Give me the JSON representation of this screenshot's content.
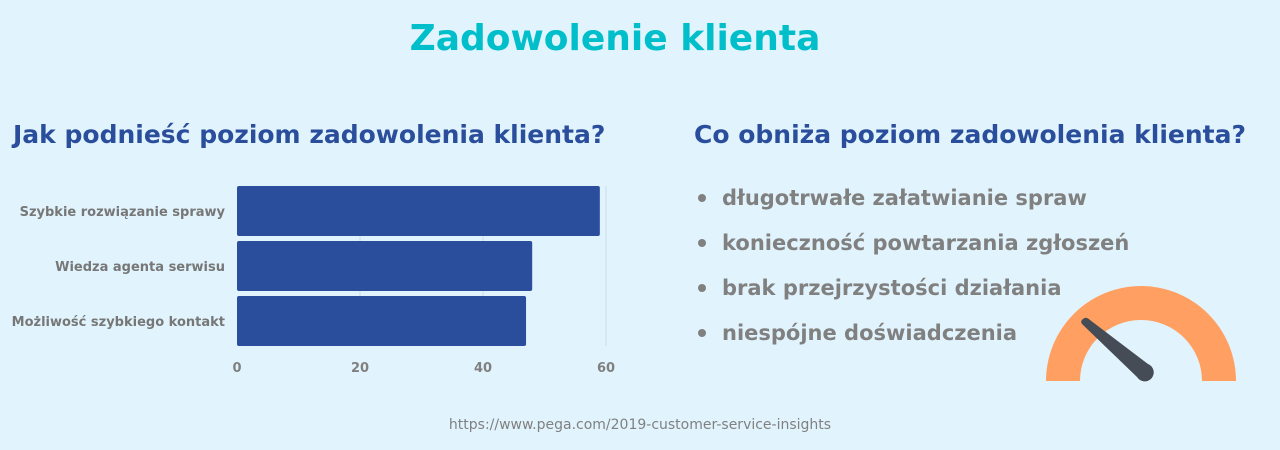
{
  "title": "Zadowolenie klienta",
  "left_heading": "Jak podnieść poziom zadowolenia klienta?",
  "right_heading": "Co obniża poziom zadowolenia klienta?",
  "bullets": [
    "długotrwałe załatwianie spraw",
    "konieczność powtarzania zgłoszeń",
    "brak przejrzystości działania",
    "niespójne doświadczenia"
  ],
  "source": "https://www.pega.com/2019-customer-service-insights",
  "colors": {
    "bar": "#2a4e9c",
    "title": "#00bfca",
    "gauge": "#ffa062",
    "needle": "#454c55"
  },
  "chart_data": {
    "type": "bar",
    "orientation": "horizontal",
    "categories": [
      "Szybkie rozwiązanie sprawy",
      "Wiedza agenta serwisu",
      "Możliwość szybkiego kontakt"
    ],
    "values": [
      59,
      48,
      47
    ],
    "xlim": [
      0,
      60
    ],
    "xticks": [
      "0",
      "20",
      "40",
      "60"
    ],
    "grid": true
  }
}
